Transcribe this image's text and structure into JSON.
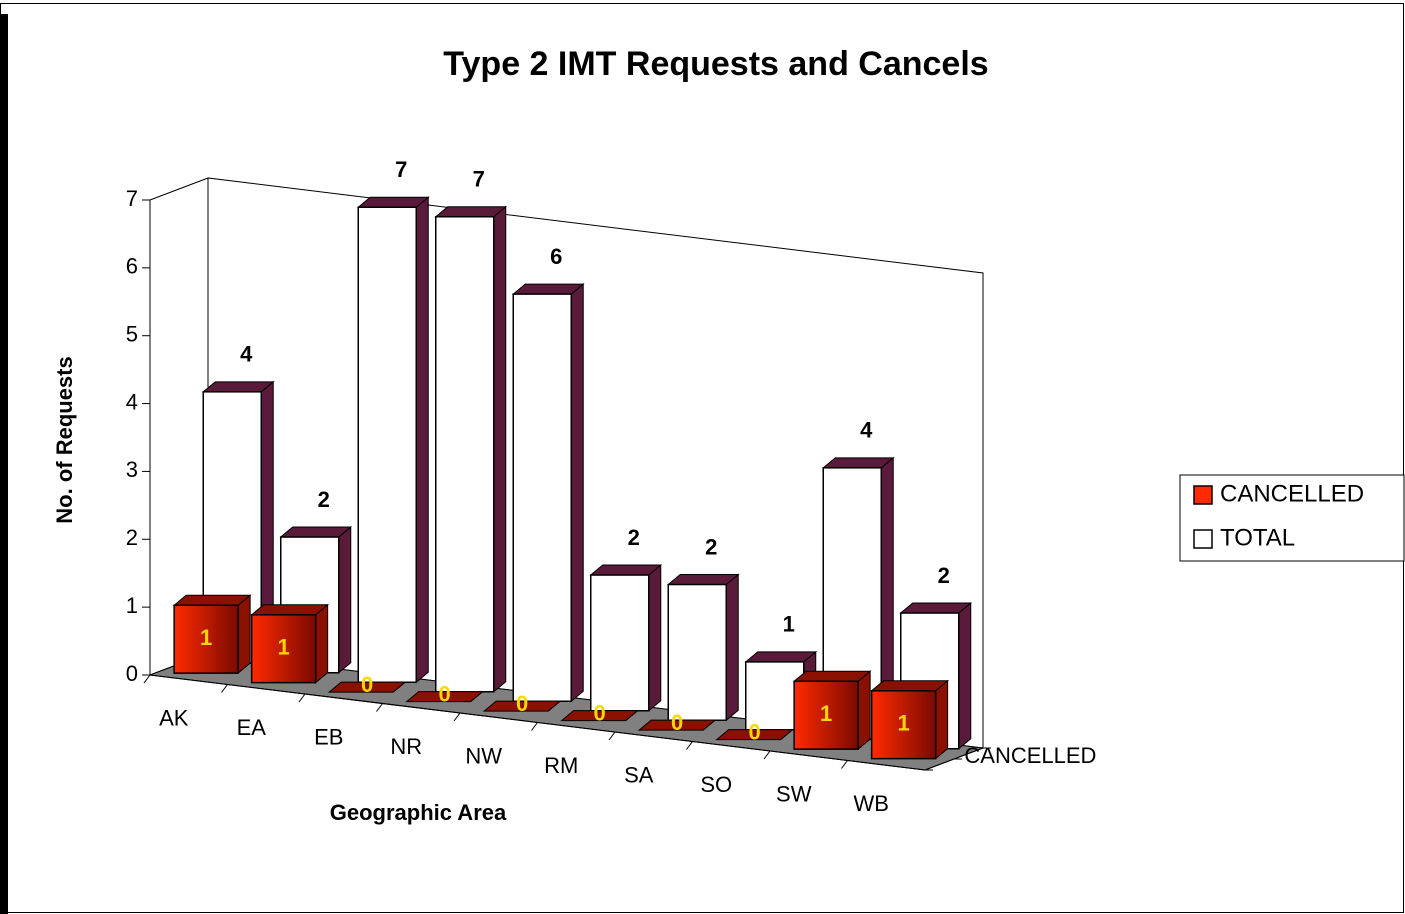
{
  "chart_data": {
    "type": "bar3d",
    "title": "Type 2 IMT Requests and Cancels",
    "x_label": "Geographic Area",
    "y_label": "No. of Requests",
    "categories": [
      "AK",
      "EA",
      "EB",
      "NR",
      "NW",
      "RM",
      "SA",
      "SO",
      "SW",
      "WB"
    ],
    "series": [
      {
        "name": "CANCELLED",
        "color": "#ff2a00",
        "values": [
          1,
          1,
          0,
          0,
          0,
          0,
          0,
          0,
          1,
          1
        ]
      },
      {
        "name": "TOTAL",
        "color": "#ffffff",
        "values": [
          4,
          2,
          7,
          7,
          6,
          2,
          2,
          1,
          4,
          2
        ]
      }
    ],
    "ylim": [
      0,
      7
    ],
    "yticks": [
      0,
      1,
      2,
      3,
      4,
      5,
      6,
      7
    ],
    "legend": "right"
  }
}
